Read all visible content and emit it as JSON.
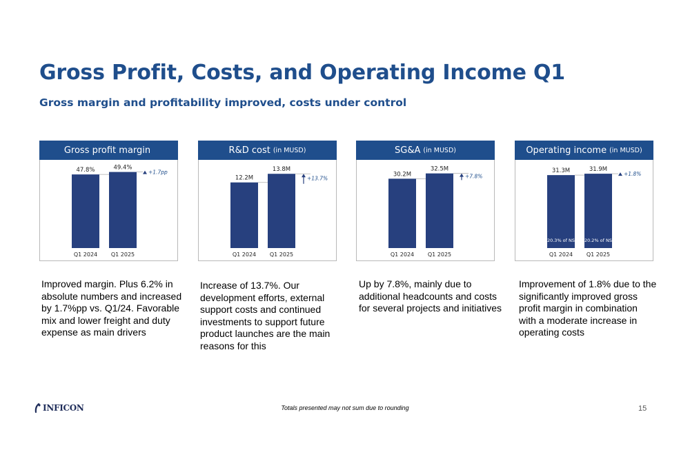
{
  "header": {
    "title": "Gross Profit, Costs, and Operating Income Q1",
    "subtitle": "Gross margin and profitability improved, costs under control"
  },
  "colors": {
    "brand": "#1f4e8c",
    "bar": "#27407e",
    "panel_border": "#b8b8b8"
  },
  "panels": [
    {
      "title": "Gross profit margin",
      "unit": "",
      "description": "Improved margin. Plus 6.2% in absolute numbers and increased by 1.7%pp vs. Q1/24. Favorable mix and lower freight and duty expense as main drivers"
    },
    {
      "title": "R&D cost",
      "unit": "(in MUSD)",
      "description": "Increase of 13.7%. Our development efforts, external support costs and continued investments to support future product launches are the main reasons for this"
    },
    {
      "title": "SG&A",
      "unit": "(in MUSD)",
      "description": "Up by 7.8%, mainly due to additional headcounts and costs for several projects and initiatives"
    },
    {
      "title": "Operating income",
      "unit": "(in MUSD)",
      "description": "Improvement of 1.8% due to the significantly improved gross profit margin in combination with a moderate increase in operating costs"
    }
  ],
  "chart_data": [
    {
      "type": "bar",
      "title": "Gross profit margin",
      "categories": [
        "Q1 2024",
        "Q1 2025"
      ],
      "values": [
        47.8,
        49.4
      ],
      "data_labels": [
        "47.8%",
        "49.4%"
      ],
      "change_label": "+1.7pp",
      "change_arrow": "triangle",
      "ylim": [
        0,
        51
      ],
      "inner_labels": []
    },
    {
      "type": "bar",
      "title": "R&D cost (in MUSD)",
      "categories": [
        "Q1 2024",
        "Q1 2025"
      ],
      "values": [
        12.2,
        13.8
      ],
      "data_labels": [
        "12.2M",
        "13.8M"
      ],
      "change_label": "+13.7%",
      "change_arrow": "up",
      "ylim": [
        0,
        14.6
      ],
      "inner_labels": []
    },
    {
      "type": "bar",
      "title": "SG&A (in MUSD)",
      "categories": [
        "Q1 2024",
        "Q1 2025"
      ],
      "values": [
        30.2,
        32.5
      ],
      "data_labels": [
        "30.2M",
        "32.5M"
      ],
      "change_label": "+7.8%",
      "change_arrow": "up",
      "ylim": [
        0,
        34.2
      ],
      "inner_labels": []
    },
    {
      "type": "bar",
      "title": "Operating income (in MUSD)",
      "categories": [
        "Q1 2024",
        "Q1 2025"
      ],
      "values": [
        31.3,
        31.9
      ],
      "data_labels": [
        "31.3M",
        "31.9M"
      ],
      "change_label": "+1.8%",
      "change_arrow": "triangle",
      "ylim": [
        0,
        33.7
      ],
      "inner_labels": [
        "20.3% of NS",
        "20.2% of NS"
      ]
    }
  ],
  "footer": {
    "logo_text": "INFICON",
    "note": "Totals presented may not sum due to rounding",
    "page_number": "15"
  }
}
